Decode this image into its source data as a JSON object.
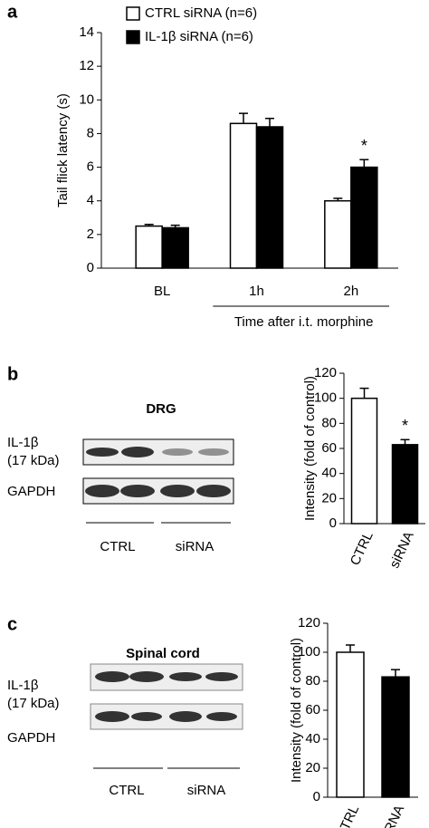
{
  "chart_data": [
    {
      "type": "bar",
      "panel": "a",
      "ylabel": "Tail flick latency (s)",
      "xlabel": "Time after i.t. morphine",
      "categories": [
        "BL",
        "1h",
        "2h"
      ],
      "series": [
        {
          "name": "CTRL siRNA (n=6)",
          "color": "#ffffff",
          "values": [
            2.5,
            8.6,
            4.0
          ],
          "errors": [
            0.1,
            0.6,
            0.15
          ]
        },
        {
          "name": "IL-1β siRNA (n=6)",
          "color": "#000000",
          "values": [
            2.4,
            8.4,
            6.0
          ],
          "errors": [
            0.15,
            0.5,
            0.45
          ]
        }
      ],
      "annotations": [
        {
          "text": "*",
          "series": 1,
          "index": 2
        }
      ],
      "ylim": [
        0,
        14
      ],
      "yticks": [
        0,
        2,
        4,
        6,
        8,
        10,
        12,
        14
      ]
    },
    {
      "type": "bar",
      "ylabel": "Intensity (fold of control)",
      "categories": [
        "CTRL",
        "siRNA"
      ],
      "colors": [
        "#ffffff",
        "#000000"
      ],
      "series": [
        {
          "values": [
            100,
            63
          ],
          "errors": [
            8,
            4
          ]
        }
      ],
      "annotations": [
        {
          "text": "*",
          "series": 0,
          "index": 1
        }
      ],
      "ylim": [
        0,
        120
      ],
      "yticks": [
        0,
        20,
        40,
        60,
        80,
        100,
        120
      ]
    },
    {
      "type": "bar",
      "ylabel": "Intensity (fold of control)",
      "categories": [
        "CTRL",
        "siRNA"
      ],
      "colors": [
        "#ffffff",
        "#000000"
      ],
      "series": [
        {
          "values": [
            100,
            83
          ],
          "errors": [
            5,
            5
          ]
        }
      ],
      "annotations": [],
      "ylim": [
        0,
        120
      ],
      "yticks": [
        0,
        20,
        40,
        60,
        80,
        100,
        120
      ]
    }
  ],
  "blots": [
    {
      "panel": "b",
      "tissue": "DRG",
      "target": "IL-1β",
      "size": "(17 kDa)",
      "control": "GAPDH",
      "groups": [
        "CTRL",
        "siRNA"
      ]
    },
    {
      "panel": "c",
      "tissue": "Spinal cord",
      "target": "IL-1β",
      "size": "(17 kDa)",
      "control": "GAPDH",
      "groups": [
        "CTRL",
        "siRNA"
      ]
    }
  ]
}
